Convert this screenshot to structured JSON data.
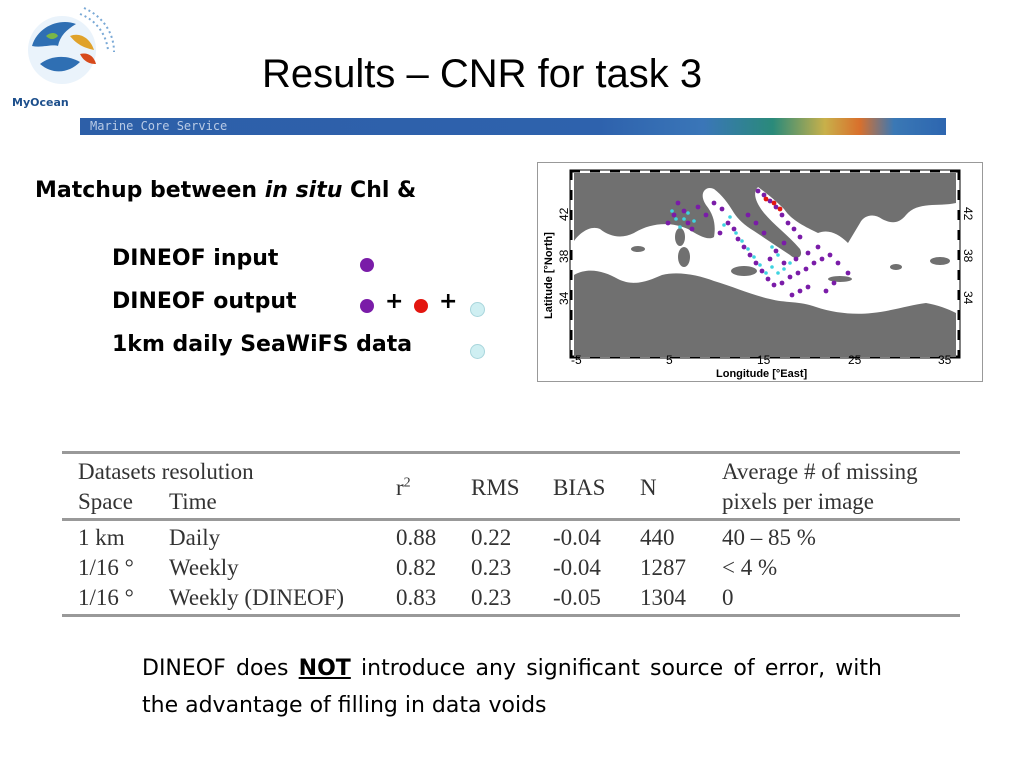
{
  "header": {
    "logo_text": "MyOcean",
    "title": "Results – CNR for task 3",
    "banner_text": "Marine Core Service"
  },
  "matchup": {
    "prefix": "Matchup between ",
    "italic": "in situ",
    "suffix": " Chl &"
  },
  "legend": [
    {
      "label": "DINEOF input",
      "symbols": [
        "purple"
      ]
    },
    {
      "label": "DINEOF output",
      "symbols": [
        "purple",
        "+",
        "red",
        "+",
        "cyan"
      ]
    },
    {
      "label": "1km daily SeaWiFS data",
      "symbols": [
        "cyan"
      ]
    }
  ],
  "colors": {
    "purple": "#7a1ca8",
    "red": "#e3160f",
    "cyan": "#cfeff2",
    "land": "#ffffff",
    "sea": "#707070"
  },
  "map": {
    "xlabel": "Longitude [°East]",
    "ylabel": "Latitude [°North]",
    "xticks": [
      "-5",
      "5",
      "15",
      "25",
      "35"
    ],
    "yticks_left": [
      "42",
      "38",
      "34"
    ],
    "yticks_right": [
      "42",
      "38",
      "34"
    ]
  },
  "table": {
    "header_line1": {
      "group": "Datasets resolution",
      "missing": "Average # of missing"
    },
    "header_line2": {
      "space": "Space",
      "time": "Time",
      "r2": "r2",
      "rms": "RMS",
      "bias": "BIAS",
      "n": "N",
      "missing": "pixels per image"
    },
    "rows": [
      {
        "space": "1 km",
        "time": "Daily",
        "r2": "0.88",
        "rms": "0.22",
        "bias": "-0.04",
        "n": "440",
        "missing": "40 – 85 %"
      },
      {
        "space": "1/16 °",
        "time": "Weekly",
        "r2": "0.82",
        "rms": "0.23",
        "bias": "-0.04",
        "n": "1287",
        "missing": "< 4 %"
      },
      {
        "space": "1/16 °",
        "time": "Weekly (DINEOF)",
        "r2": "0.83",
        "rms": "0.23",
        "bias": "-0.05",
        "n": "1304",
        "missing": "0"
      }
    ]
  },
  "note": {
    "before": "DINEOF does ",
    "emphasis": "NOT",
    "after": " introduce any significant source of error, with the advantage of filling in data voids"
  }
}
